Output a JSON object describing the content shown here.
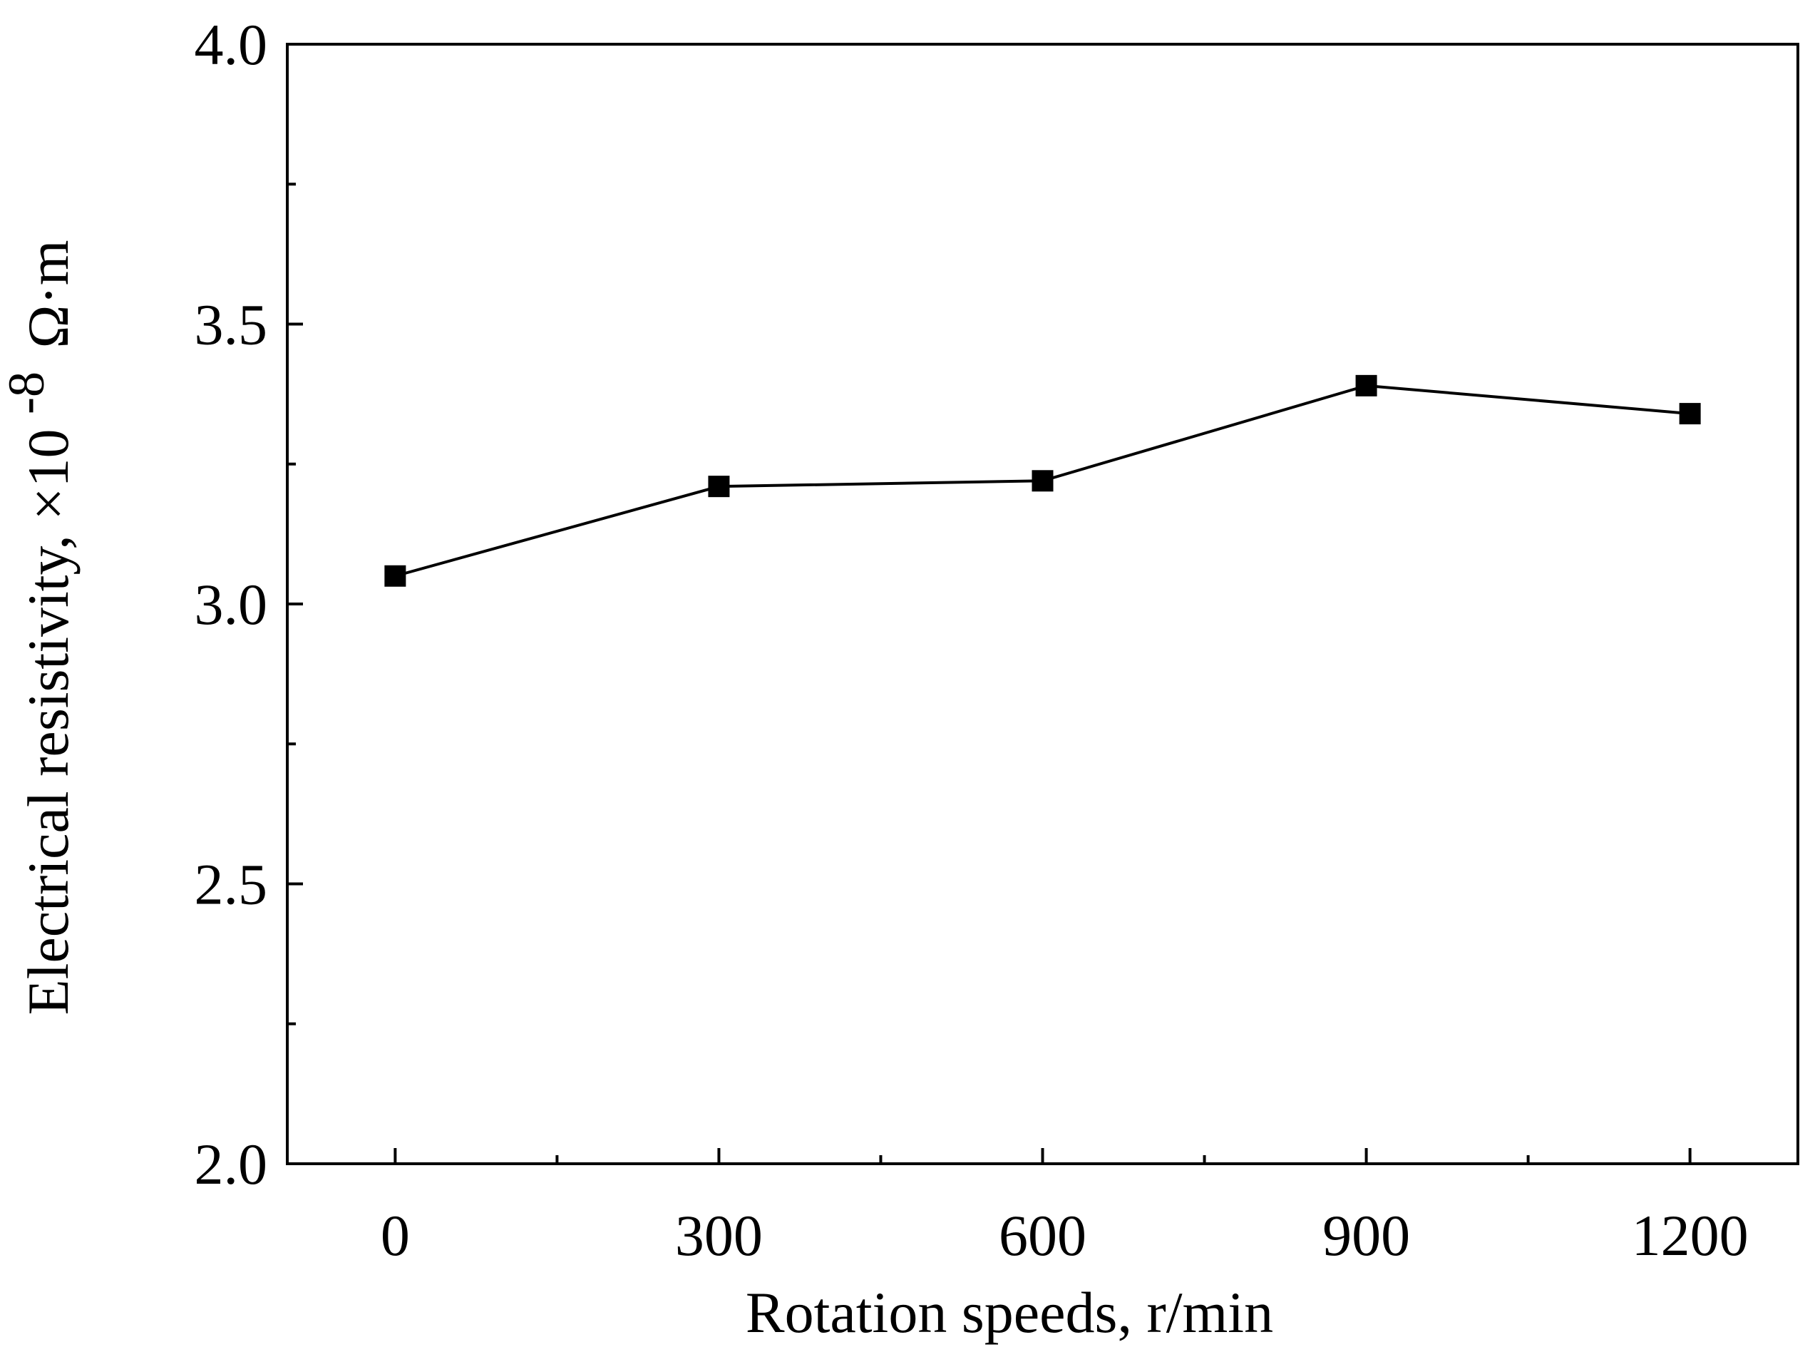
{
  "chart_data": {
    "type": "line",
    "x": [
      0,
      300,
      600,
      900,
      1200
    ],
    "series": [
      {
        "values": [
          3.05,
          3.21,
          3.22,
          3.39,
          3.34
        ]
      }
    ],
    "title": "",
    "xlabel": "Rotation speeds, r/min",
    "ylabel": {
      "prefix": "Electrical resistivity, ×10",
      "exponent": "-8",
      "unit": "Ω·m"
    },
    "xlim": [
      -100,
      1300
    ],
    "ylim": [
      2.0,
      4.0
    ],
    "xticks": [
      0,
      300,
      600,
      900,
      1200
    ],
    "xtick_labels": [
      "0",
      "300",
      "600",
      "900",
      "1200"
    ],
    "yticks": [
      2.0,
      2.5,
      3.0,
      3.5,
      4.0
    ],
    "ytick_labels": [
      "2.0",
      "2.5",
      "3.0",
      "3.5",
      "4.0"
    ],
    "grid": false,
    "legend": "none",
    "marker": "square",
    "color": "#000000"
  }
}
